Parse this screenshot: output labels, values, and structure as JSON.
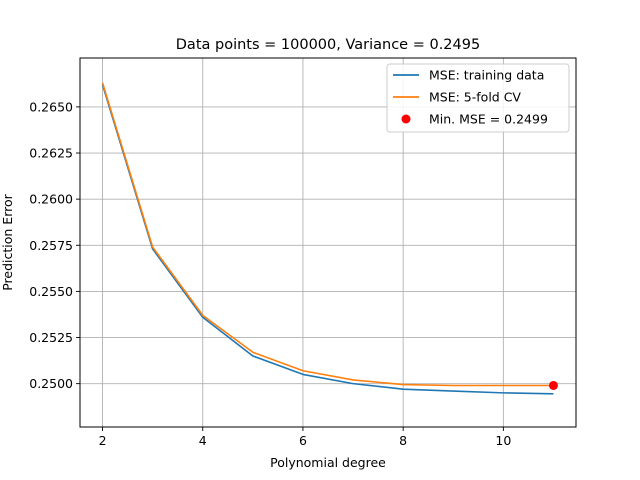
{
  "chart_data": {
    "type": "line",
    "title": "Data points = 100000, Variance = 0.2495",
    "xlabel": "Polynomial degree",
    "ylabel": "Prediction Error",
    "xlim": [
      1.55,
      11.45
    ],
    "ylim": [
      0.24765,
      0.26765
    ],
    "xticks": [
      2,
      4,
      6,
      8,
      10
    ],
    "yticks": [
      0.25,
      0.2525,
      0.255,
      0.2575,
      0.26,
      0.2625,
      0.265
    ],
    "ytick_labels": [
      "0.2500",
      "0.2525",
      "0.2550",
      "0.2575",
      "0.2600",
      "0.2625",
      "0.2650"
    ],
    "grid": true,
    "legend_position": "top-right",
    "x": [
      2,
      3,
      4,
      5,
      6,
      7,
      8,
      9,
      10,
      11
    ],
    "series": [
      {
        "name": "MSE: training data",
        "color": "#1f77b4",
        "kind": "line",
        "values": [
          0.2662,
          0.2573,
          0.2536,
          0.2515,
          0.2505,
          0.25,
          0.2497,
          0.2496,
          0.2495,
          0.24945
        ]
      },
      {
        "name": "MSE: 5-fold CV",
        "color": "#ff7f0e",
        "kind": "line",
        "values": [
          0.2663,
          0.2574,
          0.2537,
          0.2517,
          0.2507,
          0.2502,
          0.24995,
          0.2499,
          0.2499,
          0.2499
        ]
      },
      {
        "name": "Min. MSE = 0.2499",
        "color": "#ff0000",
        "kind": "point",
        "points": [
          {
            "x": 11,
            "y": 0.2499
          }
        ]
      }
    ]
  }
}
